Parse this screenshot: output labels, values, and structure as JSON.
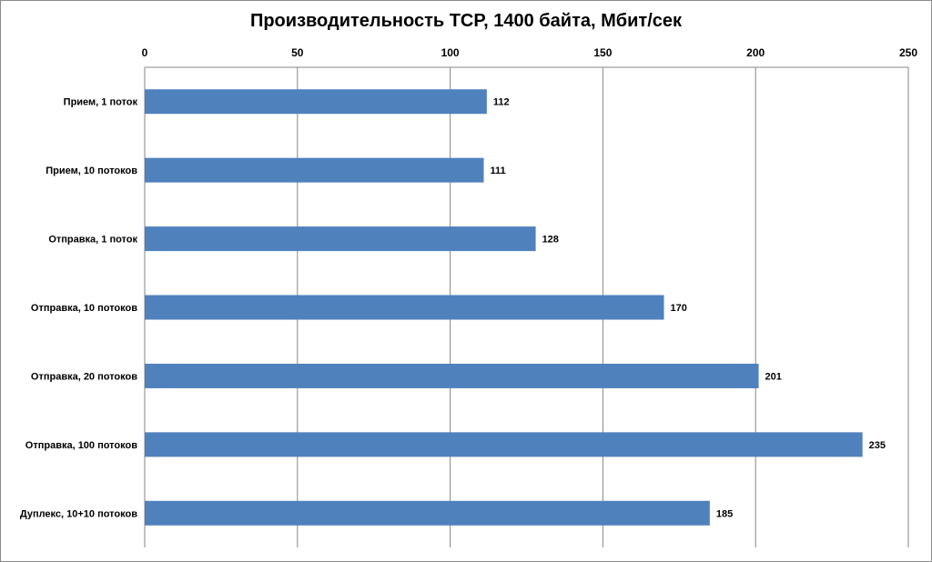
{
  "chart_data": {
    "type": "bar",
    "orientation": "horizontal",
    "title": "Производительность TCP, 1400 байта, Мбит/сек",
    "categories": [
      "Прием,  1 поток",
      "Прием,  10 потоков",
      "Отправка,  1 поток",
      "Отправка,  10 потоков",
      "Отправка,  20 потоков",
      "Отправка,  100 потоков",
      "Дуплекс,  10+10 потоков"
    ],
    "values": [
      112,
      111,
      128,
      170,
      201,
      235,
      185
    ],
    "xlim": [
      0,
      250
    ],
    "xticks": [
      0,
      50,
      100,
      150,
      200,
      250
    ],
    "x_axis_position": "top",
    "grid": true,
    "bar_color": "#4f81bd",
    "data_labels": true
  }
}
